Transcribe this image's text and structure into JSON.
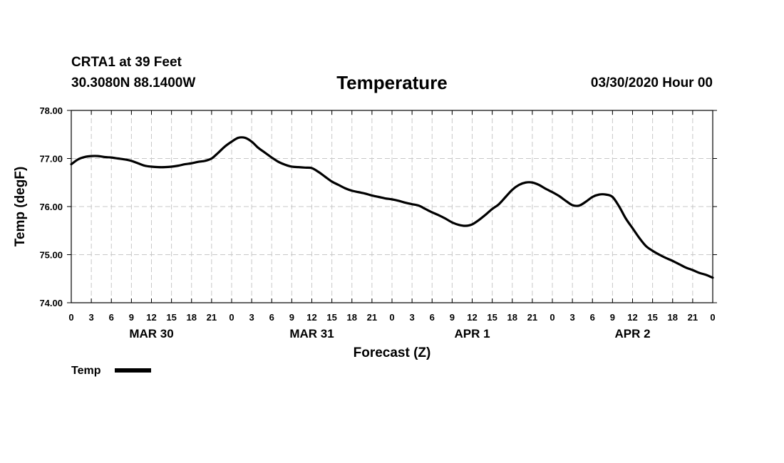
{
  "header": {
    "station": "CRTA1 at 39 Feet",
    "coordinates": "30.3080N 88.1400W",
    "title": "Temperature",
    "timestamp": "03/30/2020 Hour 00"
  },
  "chart_data": {
    "type": "line",
    "title": "Temperature",
    "xlabel": "Forecast (Z)",
    "ylabel": "Temp (degF)",
    "ylim": [
      74.0,
      78.0
    ],
    "yticks": [
      "74.00",
      "75.00",
      "76.00",
      "77.00",
      "78.00"
    ],
    "xlim_hours": [
      0,
      96
    ],
    "x_tick_step_hours": 3,
    "xtick_labels": [
      "0",
      "3",
      "6",
      "9",
      "12",
      "15",
      "18",
      "21",
      "0",
      "3",
      "6",
      "9",
      "12",
      "15",
      "18",
      "21",
      "0",
      "3",
      "6",
      "9",
      "12",
      "15",
      "18",
      "21",
      "0",
      "3",
      "6",
      "9",
      "12",
      "15",
      "18",
      "21",
      "0"
    ],
    "day_labels": [
      {
        "label": "MAR 30",
        "center_hour": 12
      },
      {
        "label": "MAR 31",
        "center_hour": 36
      },
      {
        "label": "APR 1",
        "center_hour": 60
      },
      {
        "label": "APR 2",
        "center_hour": 84
      }
    ],
    "grid": true,
    "legend_placement": "bottom-left",
    "series": [
      {
        "name": "Temp",
        "color": "#000000",
        "x": [
          0,
          1,
          2,
          3,
          4,
          5,
          6,
          7,
          8,
          9,
          10,
          11,
          12,
          13,
          14,
          15,
          16,
          17,
          18,
          19,
          20,
          21,
          22,
          23,
          24,
          25,
          26,
          27,
          28,
          29,
          30,
          31,
          32,
          33,
          34,
          35,
          36,
          37,
          38,
          39,
          40,
          41,
          42,
          43,
          44,
          45,
          46,
          47,
          48,
          49,
          50,
          51,
          52,
          53,
          54,
          55,
          56,
          57,
          58,
          59,
          60,
          61,
          62,
          63,
          64,
          65,
          66,
          67,
          68,
          69,
          70,
          71,
          72,
          73,
          74,
          75,
          76,
          77,
          78,
          79,
          80,
          81,
          82,
          83,
          84,
          85,
          86,
          87,
          88,
          89,
          90,
          91,
          92,
          93,
          94,
          95,
          96
        ],
        "y": [
          76.88,
          76.98,
          77.03,
          77.05,
          77.05,
          77.03,
          77.02,
          77.0,
          76.98,
          76.95,
          76.9,
          76.85,
          76.83,
          76.82,
          76.82,
          76.83,
          76.85,
          76.88,
          76.9,
          76.93,
          76.95,
          77.0,
          77.12,
          77.25,
          77.35,
          77.43,
          77.43,
          77.35,
          77.22,
          77.12,
          77.02,
          76.93,
          76.87,
          76.83,
          76.82,
          76.81,
          76.8,
          76.72,
          76.62,
          76.52,
          76.45,
          76.38,
          76.33,
          76.3,
          76.27,
          76.23,
          76.2,
          76.17,
          76.15,
          76.12,
          76.08,
          76.05,
          76.02,
          75.95,
          75.88,
          75.82,
          75.75,
          75.67,
          75.62,
          75.6,
          75.63,
          75.72,
          75.83,
          75.95,
          76.05,
          76.2,
          76.35,
          76.45,
          76.5,
          76.5,
          76.45,
          76.37,
          76.3,
          76.22,
          76.12,
          76.03,
          76.02,
          76.1,
          76.2,
          76.25,
          76.25,
          76.2,
          76.0,
          75.75,
          75.55,
          75.35,
          75.18,
          75.08,
          75.0,
          74.93,
          74.87,
          74.8,
          74.73,
          74.68,
          74.62,
          74.58,
          74.52
        ]
      }
    ]
  },
  "legend": {
    "label": "Temp",
    "color": "#000000"
  }
}
